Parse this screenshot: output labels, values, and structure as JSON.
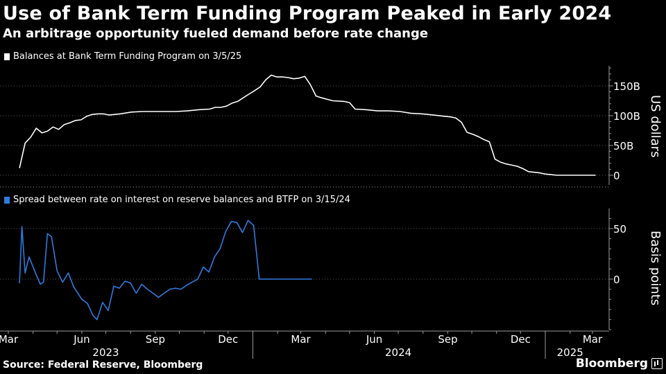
{
  "header": {
    "title": "Use of Bank Term Funding Program Peaked in Early 2024",
    "subtitle": "An arbitrage opportunity fueled demand before rate change"
  },
  "footer": {
    "source": "Source: Federal Reserve, Bloomberg",
    "brand": "Bloomberg"
  },
  "chart_data": [
    {
      "type": "line",
      "legend": "Balances at Bank Term Funding Program on 3/5/25",
      "ylabel": "US dollars",
      "ylim": [
        0,
        180
      ],
      "yticks": [
        0,
        50,
        100,
        150
      ],
      "ytick_labels": [
        "0",
        "50B",
        "100B",
        "150B"
      ],
      "color": "#ffffff",
      "x": [
        "2023-03-15",
        "2023-03-22",
        "2023-03-29",
        "2023-04-05",
        "2023-04-12",
        "2023-04-19",
        "2023-04-26",
        "2023-05-03",
        "2023-05-10",
        "2023-05-17",
        "2023-05-24",
        "2023-05-31",
        "2023-06-07",
        "2023-06-14",
        "2023-06-21",
        "2023-06-28",
        "2023-07-05",
        "2023-07-19",
        "2023-08-02",
        "2023-08-16",
        "2023-08-30",
        "2023-09-13",
        "2023-09-27",
        "2023-10-11",
        "2023-10-25",
        "2023-11-08",
        "2023-11-15",
        "2023-11-22",
        "2023-11-29",
        "2023-12-06",
        "2023-12-13",
        "2023-12-20",
        "2023-12-27",
        "2024-01-03",
        "2024-01-10",
        "2024-01-17",
        "2024-01-24",
        "2024-01-31",
        "2024-02-07",
        "2024-02-14",
        "2024-02-21",
        "2024-02-28",
        "2024-03-06",
        "2024-03-13",
        "2024-03-20",
        "2024-03-27",
        "2024-04-10",
        "2024-04-24",
        "2024-05-01",
        "2024-05-08",
        "2024-05-22",
        "2024-06-05",
        "2024-06-19",
        "2024-07-03",
        "2024-07-17",
        "2024-07-31",
        "2024-08-14",
        "2024-08-28",
        "2024-09-04",
        "2024-09-11",
        "2024-09-18",
        "2024-09-25",
        "2024-10-02",
        "2024-10-09",
        "2024-10-16",
        "2024-10-23",
        "2024-10-30",
        "2024-11-06",
        "2024-11-13",
        "2024-11-20",
        "2024-11-27",
        "2024-12-04",
        "2024-12-11",
        "2024-12-18",
        "2024-12-25",
        "2025-01-01",
        "2025-01-08",
        "2025-01-15",
        "2025-01-29",
        "2025-02-12",
        "2025-02-26",
        "2025-03-05"
      ],
      "values": [
        12,
        54,
        64,
        79,
        71,
        74,
        81,
        77,
        85,
        88,
        92,
        93,
        99,
        102,
        103,
        103,
        101,
        103,
        106,
        107,
        107,
        107,
        107,
        108,
        110,
        111,
        114,
        114,
        116,
        121,
        124,
        130,
        136,
        142,
        148,
        160,
        168,
        165,
        165,
        164,
        162,
        163,
        166,
        152,
        133,
        130,
        125,
        124,
        122,
        111,
        110,
        108,
        108,
        107,
        104,
        103,
        101,
        99,
        98,
        96,
        89,
        72,
        69,
        65,
        60,
        56,
        27,
        22,
        19,
        17,
        15,
        11,
        6,
        5,
        4,
        2,
        1,
        0,
        0,
        0,
        0,
        0
      ]
    },
    {
      "type": "line",
      "legend": "Spread between rate on interest on reserve balances and BTFP  on 3/15/24",
      "ylabel": "Basis points",
      "ylim": [
        -50,
        70
      ],
      "yticks": [
        0,
        50
      ],
      "ytick_labels": [
        "0",
        "50"
      ],
      "color": "#2f7be0",
      "x": [
        "2023-03-15",
        "2023-03-18",
        "2023-03-22",
        "2023-03-27",
        "2023-04-03",
        "2023-04-10",
        "2023-04-14",
        "2023-04-19",
        "2023-04-24",
        "2023-05-01",
        "2023-05-08",
        "2023-05-15",
        "2023-05-22",
        "2023-06-01",
        "2023-06-08",
        "2023-06-15",
        "2023-06-20",
        "2023-06-27",
        "2023-07-04",
        "2023-07-11",
        "2023-07-18",
        "2023-07-25",
        "2023-08-01",
        "2023-08-08",
        "2023-08-15",
        "2023-08-22",
        "2023-08-29",
        "2023-09-05",
        "2023-09-12",
        "2023-09-19",
        "2023-09-26",
        "2023-10-03",
        "2023-10-10",
        "2023-10-17",
        "2023-10-24",
        "2023-10-31",
        "2023-11-07",
        "2023-11-14",
        "2023-11-21",
        "2023-11-28",
        "2023-12-05",
        "2023-12-12",
        "2023-12-19",
        "2023-12-26",
        "2024-01-02",
        "2024-01-09",
        "2024-01-16",
        "2024-01-22",
        "2024-02-01",
        "2024-02-15",
        "2024-03-01",
        "2024-03-15"
      ],
      "values": [
        -4,
        52,
        6,
        22,
        8,
        -5,
        -3,
        45,
        42,
        8,
        -3,
        6,
        -8,
        -20,
        -24,
        -36,
        -40,
        -23,
        -31,
        -7,
        -9,
        -2,
        -4,
        -14,
        -5,
        -10,
        -14,
        -18,
        -14,
        -10,
        -9,
        -10,
        -6,
        -3,
        0,
        12,
        7,
        22,
        30,
        47,
        57,
        56,
        46,
        58,
        53,
        0,
        0,
        0,
        0,
        0,
        0,
        0
      ]
    }
  ],
  "xaxis": {
    "month_labels": [
      {
        "date": "2023-03-01",
        "label": "Mar"
      },
      {
        "date": "2023-06-01",
        "label": "Jun"
      },
      {
        "date": "2023-09-01",
        "label": "Sep"
      },
      {
        "date": "2023-12-01",
        "label": "Dec"
      },
      {
        "date": "2024-03-01",
        "label": "Mar"
      },
      {
        "date": "2024-06-01",
        "label": "Jun"
      },
      {
        "date": "2024-09-01",
        "label": "Sep"
      },
      {
        "date": "2024-12-01",
        "label": "Dec"
      },
      {
        "date": "2025-03-01",
        "label": "Mar"
      }
    ],
    "year_labels": [
      {
        "date": "2023-07-01",
        "label": "2023"
      },
      {
        "date": "2024-07-01",
        "label": "2024"
      },
      {
        "date": "2025-02-01",
        "label": "2025"
      }
    ],
    "year_dividers": [
      "2024-01-01",
      "2025-01-01"
    ]
  },
  "colors": {
    "background": "#000000",
    "grid": "#5a5a5a",
    "axis": "#9a9a9a",
    "balance_line": "#ffffff",
    "spread_line": "#2f7be0"
  }
}
